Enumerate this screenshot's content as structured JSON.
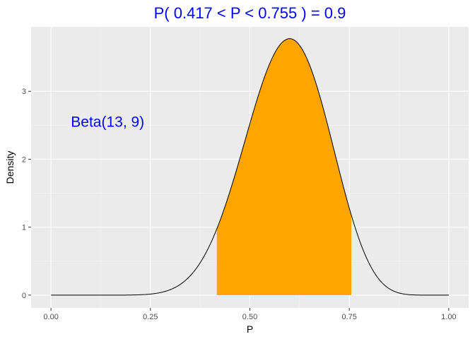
{
  "chart_data": {
    "type": "area",
    "title": "P( 0.417 < P <  0.755 ) = 0.9",
    "xlabel": "P",
    "ylabel": "Density",
    "xlim": [
      0,
      1
    ],
    "ylim": [
      0,
      3.76
    ],
    "x_ticks": [
      0,
      0.25,
      0.5,
      0.75,
      1
    ],
    "x_tick_labels": [
      "0.00",
      "0.25",
      "0.50",
      "0.75",
      "1.00"
    ],
    "y_ticks": [
      0,
      1,
      2,
      3
    ],
    "y_tick_labels": [
      "0",
      "1",
      "2",
      "3"
    ],
    "grid": true,
    "distribution": {
      "name": "Beta",
      "alpha": 13,
      "beta": 9
    },
    "shaded_interval": [
      0.417,
      0.755
    ],
    "probability": 0.9,
    "annotation": "Beta(13, 9)",
    "annotation_position": [
      0.05,
      2.55
    ],
    "series": [
      {
        "x": [
          0.0,
          0.1,
          0.2,
          0.25,
          0.3,
          0.35,
          0.4,
          0.417,
          0.45,
          0.5,
          0.55,
          0.6,
          0.65,
          0.7,
          0.755,
          0.8,
          0.85,
          0.9,
          0.95,
          1.0
        ],
        "y": [
          0.0,
          1e-05,
          0.0057,
          0.0337,
          0.1363,
          0.4013,
          0.9164,
          1.1515,
          1.6985,
          2.6316,
          3.4515,
          3.7588,
          3.3575,
          2.3713,
          1.1517,
          0.4227,
          0.0807,
          0.0049,
          2e-05,
          0.0
        ]
      }
    ],
    "colors": {
      "panel": "#ebebeb",
      "grid_major": "#ffffff",
      "grid_minor": "#f5f5f5",
      "fill": "#ffa500",
      "line": "#000000",
      "title": "#0000ff",
      "annotation": "#0000ff"
    }
  }
}
